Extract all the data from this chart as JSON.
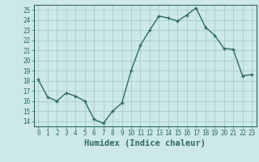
{
  "x": [
    0,
    1,
    2,
    3,
    4,
    5,
    6,
    7,
    8,
    9,
    10,
    11,
    12,
    13,
    14,
    15,
    16,
    17,
    18,
    19,
    20,
    21,
    22,
    23
  ],
  "y": [
    18.1,
    16.4,
    16.0,
    16.8,
    16.5,
    16.0,
    14.2,
    13.8,
    15.0,
    15.8,
    19.0,
    21.5,
    23.0,
    24.4,
    24.2,
    23.9,
    24.5,
    25.2,
    23.3,
    22.5,
    21.2,
    21.1,
    18.5,
    18.6
  ],
  "line_color": "#2e6b5e",
  "marker": "+",
  "marker_size": 3.5,
  "bg_color": "#cce8e8",
  "grid_color": "#aacccc",
  "xlabel": "Humidex (Indice chaleur)",
  "ylim": [
    13.5,
    25.5
  ],
  "xlim": [
    -0.5,
    23.5
  ],
  "yticks": [
    14,
    15,
    16,
    17,
    18,
    19,
    20,
    21,
    22,
    23,
    24,
    25
  ],
  "xticks": [
    0,
    1,
    2,
    3,
    4,
    5,
    6,
    7,
    8,
    9,
    10,
    11,
    12,
    13,
    14,
    15,
    16,
    17,
    18,
    19,
    20,
    21,
    22,
    23
  ],
  "tick_label_fontsize": 5.5,
  "xlabel_fontsize": 7.5,
  "tick_color": "#2e6b5e",
  "axis_color": "#2e6b5e",
  "linewidth": 1.0,
  "marker_linewidth": 1.0
}
